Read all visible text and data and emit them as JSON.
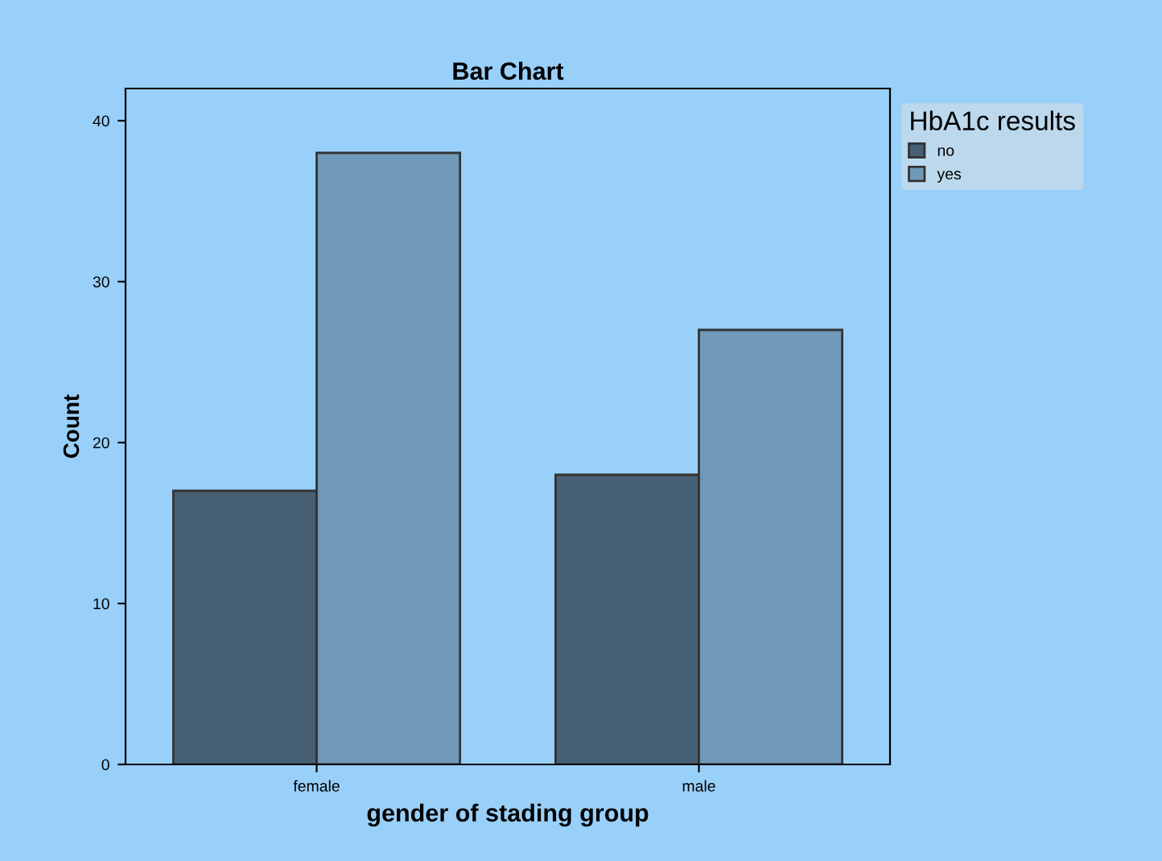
{
  "chart_data": {
    "type": "bar",
    "title": "Bar Chart",
    "xlabel": "gender of stading group",
    "ylabel": "Count",
    "legend_title": "HbA1c results",
    "categories": [
      "female",
      "male"
    ],
    "series": [
      {
        "name": "no",
        "color": "#465f73",
        "values": [
          17,
          18
        ]
      },
      {
        "name": "yes",
        "color": "#7099b9",
        "values": [
          38,
          27
        ]
      }
    ],
    "ylim": [
      0,
      42
    ],
    "yticks": [
      0,
      10,
      20,
      30,
      40
    ],
    "grid": false,
    "legend": "top right"
  }
}
